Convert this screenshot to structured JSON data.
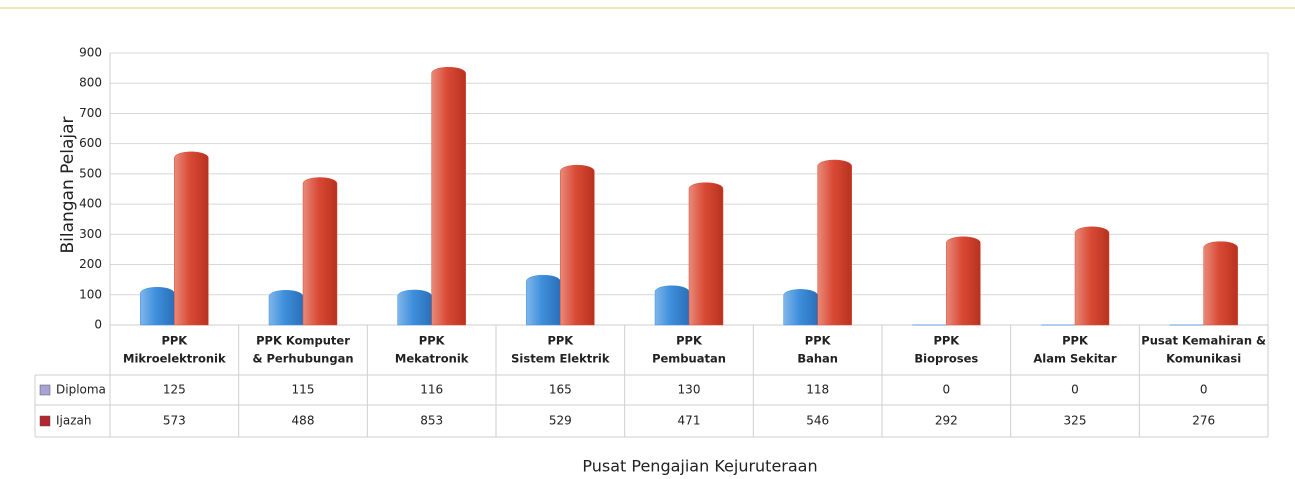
{
  "chart_data": {
    "type": "bar",
    "x_label": "Pusat Pengajian Kejuruteraan",
    "y_label": "Bilangan Pelajar",
    "categories": [
      [
        "PPK",
        "Mikroelektronik"
      ],
      [
        "PPK Komputer",
        "& Perhubungan"
      ],
      [
        "PPK",
        "Mekatronik"
      ],
      [
        "PPK",
        "Sistem Elektrik"
      ],
      [
        "PPK",
        "Pembuatan"
      ],
      [
        "PPK",
        "Bahan"
      ],
      [
        "PPK",
        "Bioproses"
      ],
      [
        "PPK",
        "Alam Sekitar"
      ],
      [
        "Pusat Kemahiran &",
        "Komunikasi"
      ]
    ],
    "series": [
      {
        "name": "Diploma",
        "color": "#3f8fdc",
        "key_color": "#a8a2d6",
        "values": [
          125,
          115,
          116,
          165,
          130,
          118,
          0,
          0,
          0
        ]
      },
      {
        "name": "Ijazah",
        "color": "#d94a36",
        "key_color": "#b3262e",
        "values": [
          573,
          488,
          853,
          529,
          471,
          546,
          292,
          325,
          276
        ]
      }
    ],
    "ylim": [
      0,
      900
    ],
    "yticks": [
      0,
      100,
      200,
      300,
      400,
      500,
      600,
      700,
      800,
      900
    ],
    "grid": true
  }
}
